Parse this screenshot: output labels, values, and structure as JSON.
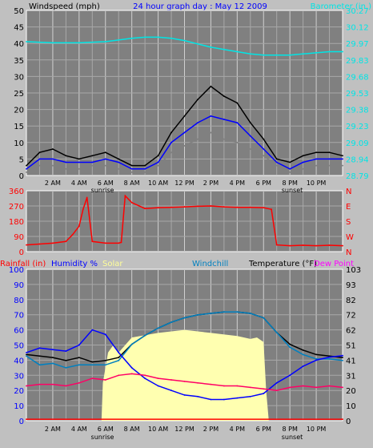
{
  "chart_data": [
    {
      "type": "line",
      "title": "24 hour graph day : May 12 2009",
      "ylabel_left": "Windspeed (mph)",
      "ylabel_right": "Barometer (in.)",
      "x_ticks": [
        "2 AM",
        "4 AM",
        "6 AM",
        "8 AM",
        "10 AM",
        "12 PM",
        "2 PM",
        "4 PM",
        "6 PM",
        "8 PM",
        "10 PM"
      ],
      "x_annotations": [
        "sunrise",
        "sunset"
      ],
      "y_left_ticks": [
        "0",
        "5",
        "10",
        "15",
        "20",
        "25",
        "30",
        "35",
        "40",
        "45",
        "50"
      ],
      "y_left_range": [
        0,
        50
      ],
      "y_right_ticks": [
        "28.79",
        "28.94",
        "29.09",
        "29.23",
        "29.38",
        "29.53",
        "29.68",
        "29.83",
        "29.97",
        "30.12",
        "30.27"
      ],
      "y_right_range": [
        28.79,
        30.27
      ],
      "x_range_hours": [
        0,
        24
      ],
      "grid": true,
      "series": [
        {
          "name": "Barometer (in.)",
          "color": "#00e5e5",
          "axis": "right",
          "x": [
            0,
            2,
            4,
            6,
            8,
            9,
            10,
            11,
            12,
            13,
            14,
            15,
            16,
            17,
            18,
            19,
            20,
            21,
            22,
            23,
            24
          ],
          "y": [
            29.99,
            29.98,
            29.98,
            29.99,
            30.02,
            30.03,
            30.03,
            30.02,
            30.0,
            29.97,
            29.94,
            29.92,
            29.9,
            29.88,
            29.87,
            29.87,
            29.87,
            29.88,
            29.89,
            29.9,
            29.9
          ]
        },
        {
          "color": "#000000",
          "axis": "left",
          "x": [
            0,
            1,
            2,
            3,
            4,
            5,
            6,
            7,
            8,
            9,
            10,
            11,
            12,
            13,
            14,
            15,
            16,
            17,
            18,
            19,
            20,
            21,
            22,
            23,
            24
          ],
          "y": [
            3,
            7,
            8,
            6,
            5,
            6,
            7,
            5,
            3,
            3,
            6,
            13,
            18,
            23,
            27,
            24,
            22,
            16,
            11,
            5,
            4,
            6,
            7,
            7,
            6
          ]
        },
        {
          "color": "#0000ff",
          "axis": "left",
          "x": [
            0,
            1,
            2,
            3,
            4,
            5,
            6,
            7,
            8,
            9,
            10,
            11,
            12,
            13,
            14,
            15,
            16,
            17,
            18,
            19,
            20,
            21,
            22,
            23,
            24
          ],
          "y": [
            2,
            5,
            5,
            4,
            4,
            4,
            5,
            4,
            2,
            2,
            4,
            10,
            13,
            16,
            18,
            17,
            16,
            12,
            8,
            4,
            2,
            4,
            5,
            5,
            5
          ]
        },
        {
          "color": "#808080",
          "axis": "left",
          "x": [
            0,
            1,
            2,
            3,
            4,
            5,
            6,
            7,
            8,
            9,
            10,
            11,
            12,
            13,
            14,
            15,
            16,
            17,
            18,
            19,
            20,
            21,
            22,
            23,
            24
          ],
          "y": [
            1,
            3,
            3,
            2,
            2,
            3,
            3,
            2,
            1,
            1,
            3,
            7,
            9,
            11,
            13,
            11,
            10,
            8,
            6,
            3,
            1,
            2,
            3,
            3,
            3
          ]
        }
      ]
    },
    {
      "type": "line",
      "y_left_ticks": [
        "0",
        "90",
        "180",
        "270",
        "360"
      ],
      "y_left_range": [
        0,
        360
      ],
      "y_right_labels": [
        "N",
        "W",
        "S",
        "E",
        "N"
      ],
      "x_range_hours": [
        0,
        24
      ],
      "grid": true,
      "series": [
        {
          "color": "#ff0000",
          "x": [
            0,
            1,
            2,
            3,
            3.5,
            4,
            4.3,
            4.6,
            5,
            6,
            7,
            7.2,
            7.5,
            8,
            9,
            10,
            11,
            12,
            13,
            14,
            15,
            16,
            17,
            18,
            18.6,
            19,
            20,
            21,
            22,
            23,
            24
          ],
          "y": [
            40,
            45,
            50,
            60,
            100,
            150,
            250,
            320,
            60,
            50,
            50,
            55,
            330,
            290,
            255,
            260,
            262,
            265,
            268,
            270,
            265,
            262,
            262,
            260,
            250,
            40,
            35,
            38,
            35,
            38,
            35
          ]
        }
      ]
    },
    {
      "type": "line",
      "legend": [
        "Rainfall (in)",
        "Humidity %",
        "Solar",
        "Windchill",
        "Temperature (°F)",
        "Dew Point"
      ],
      "legend_colors": [
        "#ff0000",
        "#0000ff",
        "#ffff99",
        "#0080c0",
        "#000000",
        "#ff00ff"
      ],
      "x_ticks": [
        "2 AM",
        "4 AM",
        "6 AM",
        "8 AM",
        "10 AM",
        "12 PM",
        "2 PM",
        "4 PM",
        "6 PM",
        "8 PM",
        "10 PM"
      ],
      "x_annotations": [
        "sunrise",
        "sunset"
      ],
      "y_left_ticks": [
        "0",
        "10",
        "20",
        "30",
        "40",
        "50",
        "60",
        "70",
        "80",
        "90",
        "100"
      ],
      "y_left_range": [
        0,
        100
      ],
      "y_right_ticks": [
        "0",
        "10",
        "20",
        "31",
        "41",
        "51",
        "62",
        "72",
        "82",
        "93",
        "103"
      ],
      "y_right_range": [
        0,
        103
      ],
      "x_range_hours": [
        0,
        24
      ],
      "grid": true,
      "series": [
        {
          "name": "Solar",
          "color": "#ffffb0",
          "kind": "area",
          "x": [
            0,
            5.7,
            5.8,
            6.2,
            6.6,
            7,
            8,
            10,
            12,
            14,
            16,
            17,
            17.5,
            18,
            18.2,
            18.4,
            24
          ],
          "y": [
            0,
            0,
            25,
            45,
            50,
            45,
            55,
            58,
            60,
            58,
            56,
            54,
            55,
            52,
            20,
            0,
            0
          ]
        },
        {
          "name": "Temperature (°F)",
          "color": "#000000",
          "x": [
            0,
            1,
            2,
            3,
            4,
            5,
            6,
            7,
            8,
            9,
            10,
            11,
            12,
            13,
            14,
            15,
            16,
            17,
            18,
            19,
            20,
            21,
            22,
            23,
            24
          ],
          "y": [
            45,
            44,
            43,
            41,
            43,
            40,
            41,
            43,
            52,
            58,
            63,
            67,
            70,
            72,
            73,
            74,
            74,
            73,
            70,
            60,
            52,
            48,
            45,
            44,
            43
          ]
        },
        {
          "name": "Windchill",
          "color": "#0080c0",
          "x": [
            0,
            1,
            2,
            3,
            4,
            5,
            6,
            7,
            8,
            9,
            10,
            11,
            12,
            13,
            14,
            15,
            16,
            17,
            18,
            19,
            20,
            21,
            22,
            23,
            24
          ],
          "y": [
            44,
            38,
            39,
            36,
            38,
            38,
            38,
            41,
            52,
            58,
            63,
            67,
            70,
            72,
            73,
            74,
            74,
            73,
            70,
            60,
            50,
            45,
            42,
            42,
            41
          ]
        },
        {
          "name": "Humidity %",
          "color": "#0000ff",
          "x": [
            0,
            1,
            2,
            3,
            4,
            5,
            6,
            7,
            8,
            9,
            10,
            11,
            12,
            13,
            14,
            15,
            16,
            17,
            18,
            19,
            20,
            21,
            22,
            23,
            24
          ],
          "y": [
            45,
            48,
            47,
            46,
            50,
            60,
            57,
            45,
            35,
            28,
            23,
            20,
            17,
            16,
            14,
            14,
            15,
            16,
            18,
            25,
            30,
            36,
            40,
            42,
            43
          ]
        },
        {
          "name": "Dew Point",
          "color": "#ff0066",
          "x": [
            0,
            1,
            2,
            3,
            4,
            5,
            6,
            7,
            8,
            9,
            10,
            11,
            12,
            13,
            14,
            15,
            16,
            17,
            18,
            19,
            20,
            21,
            22,
            23,
            24
          ],
          "y": [
            23,
            24,
            24,
            23,
            25,
            28,
            27,
            30,
            31,
            30,
            28,
            27,
            26,
            25,
            24,
            23,
            23,
            22,
            21,
            20,
            22,
            23,
            22,
            23,
            22
          ]
        },
        {
          "name": "Rainfall (in)",
          "color": "#ff0000",
          "x": [
            0,
            24
          ],
          "y": [
            1,
            1
          ]
        }
      ]
    }
  ]
}
